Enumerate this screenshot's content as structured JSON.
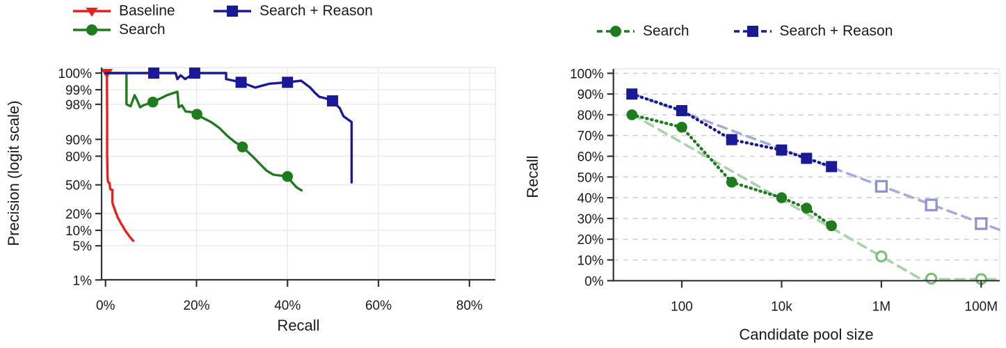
{
  "page": {
    "background": "#ffffff",
    "text_color": "#1a1a1a"
  },
  "colors": {
    "baseline_red": "#e8211d",
    "search_green": "#1e7b1e",
    "reason_navy": "#1a1a96",
    "search_fit_light_green": "#a8d2a8",
    "reason_fit_lavender": "#a7abdc",
    "search_open_marker": "#7bbd7b",
    "reason_open_marker": "#8b90d0",
    "grid_left": "#e9e9e9",
    "grid_right": "#cfcfcf",
    "spine": "#333333"
  },
  "chart_data": [
    {
      "id": "pr-curve",
      "type": "line",
      "title": "",
      "xlabel": "Recall",
      "ylabel": "Precision (logit scale)",
      "x_scale": "linear",
      "y_scale": "logit",
      "grid": true,
      "xlim": [
        0,
        86
      ],
      "x_ticks": {
        "values": [
          0,
          20,
          40,
          60,
          80
        ],
        "labels": [
          "0%",
          "20%",
          "40%",
          "60%",
          "80%"
        ]
      },
      "y_ticks": {
        "values": [
          100,
          99,
          98,
          90,
          80,
          50,
          20,
          10,
          5,
          1
        ],
        "labels": [
          "100%",
          "99%",
          "98%",
          "90%",
          "80%",
          "50%",
          "20%",
          "10%",
          "5%",
          "1%"
        ]
      },
      "legend": [
        {
          "label": "Baseline",
          "color": "#e8211d",
          "marker": "triangle-down",
          "line": "solid"
        },
        {
          "label": "Search",
          "color": "#1e7b1e",
          "marker": "circle",
          "line": "solid"
        },
        {
          "label": "Search + Reason",
          "color": "#1a1a96",
          "marker": "square",
          "line": "solid"
        }
      ],
      "series": [
        {
          "name": "Baseline",
          "color": "#e8211d",
          "marker": "triangle-down",
          "style": "solid",
          "points": [
            [
              0.3,
              100
            ],
            [
              0.35,
              97
            ],
            [
              0.35,
              81
            ],
            [
              0.4,
              70
            ],
            [
              0.45,
              60
            ],
            [
              0.5,
              55
            ],
            [
              0.6,
              53
            ],
            [
              0.9,
              52
            ],
            [
              0.95,
              49
            ],
            [
              1.0,
              46
            ],
            [
              1.1,
              44.5
            ],
            [
              1.5,
              44
            ],
            [
              1.5,
              30
            ],
            [
              1.7,
              27
            ],
            [
              1.9,
              25
            ],
            [
              2.1,
              22.5
            ],
            [
              2.3,
              20.5
            ],
            [
              2.5,
              19
            ],
            [
              2.7,
              17
            ],
            [
              3.0,
              15.5
            ],
            [
              3.2,
              14.5
            ],
            [
              3.5,
              13
            ],
            [
              3.8,
              12
            ],
            [
              4.0,
              11
            ],
            [
              4.3,
              10
            ],
            [
              4.6,
              9.2
            ],
            [
              4.9,
              8.5
            ],
            [
              5.2,
              7.8
            ],
            [
              5.5,
              7.2
            ],
            [
              5.8,
              6.7
            ],
            [
              6.1,
              6.3
            ]
          ],
          "marker_points": [
            [
              0.3,
              100
            ]
          ]
        },
        {
          "name": "Search",
          "color": "#1e7b1e",
          "marker": "circle",
          "style": "solid",
          "points": [
            [
              0,
              100
            ],
            [
              4.6,
              100
            ],
            [
              4.6,
              98.0
            ],
            [
              5.5,
              97.8
            ],
            [
              6.4,
              98.7
            ],
            [
              7.0,
              98.3
            ],
            [
              7.6,
              97.7
            ],
            [
              8.3,
              97.9
            ],
            [
              10.4,
              98.2
            ],
            [
              13.5,
              98.7
            ],
            [
              15.8,
              98.9
            ],
            [
              16.1,
              97.7
            ],
            [
              16.8,
              97.9
            ],
            [
              17.6,
              97.2
            ],
            [
              19.0,
              97.1
            ],
            [
              20.1,
              96.8
            ],
            [
              21.2,
              96.3
            ],
            [
              23.2,
              95.4
            ],
            [
              25.0,
              94.0
            ],
            [
              26.8,
              91.4
            ],
            [
              28.3,
              89.0
            ],
            [
              30.1,
              86.2
            ],
            [
              32.4,
              79.6
            ],
            [
              33.9,
              73.5
            ],
            [
              35.4,
              66.5
            ],
            [
              36.9,
              62.0
            ],
            [
              38.5,
              61.0
            ],
            [
              40.0,
              60.0
            ],
            [
              41.0,
              53.0
            ],
            [
              42.0,
              47.0
            ],
            [
              43.1,
              43.3
            ]
          ],
          "marker_points": [
            [
              10.4,
              98.2
            ],
            [
              20.1,
              96.8
            ],
            [
              30.1,
              86.2
            ],
            [
              40.0,
              60.0
            ]
          ]
        },
        {
          "name": "Search + Reason",
          "color": "#1a1a96",
          "marker": "square",
          "style": "solid",
          "points": [
            [
              0,
              100
            ],
            [
              15.4,
              100
            ],
            [
              15.8,
              99.4
            ],
            [
              16.5,
              99.5
            ],
            [
              17.5,
              99.4
            ],
            [
              19.6,
              100
            ],
            [
              26.5,
              100
            ],
            [
              26.5,
              99.4
            ],
            [
              29.8,
              99.3
            ],
            [
              32.9,
              99.1
            ],
            [
              36.0,
              99.25
            ],
            [
              40.0,
              99.3
            ],
            [
              43.0,
              99.35
            ],
            [
              45.0,
              99.1
            ],
            [
              46.0,
              98.85
            ],
            [
              47.0,
              98.6
            ],
            [
              48.3,
              98.5
            ],
            [
              49.9,
              98.3
            ],
            [
              50.8,
              97.9
            ],
            [
              51.5,
              97.6
            ],
            [
              52.3,
              96.5
            ],
            [
              53.5,
              95.8
            ],
            [
              54.1,
              95.4
            ],
            [
              54.1,
              53
            ]
          ],
          "marker_points": [
            [
              10.6,
              100
            ],
            [
              19.6,
              100
            ],
            [
              29.8,
              99.3
            ],
            [
              40.0,
              99.3
            ],
            [
              49.9,
              98.3
            ]
          ]
        }
      ]
    },
    {
      "id": "recall-vs-pool",
      "type": "line",
      "title": "",
      "xlabel": "Candidate pool size",
      "ylabel": "Recall",
      "x_scale": "log10",
      "y_scale": "linear",
      "grid": true,
      "ylim": [
        0,
        100
      ],
      "x_ticks": {
        "values": [
          2,
          4,
          6,
          8
        ],
        "labels": [
          "100",
          "10k",
          "1M",
          "100M"
        ]
      },
      "y_ticks": {
        "values": [
          0,
          10,
          20,
          30,
          40,
          50,
          60,
          70,
          80,
          90,
          100
        ],
        "labels": [
          "0%",
          "10%",
          "20%",
          "30%",
          "40%",
          "50%",
          "60%",
          "70%",
          "80%",
          "90%",
          "100%"
        ]
      },
      "legend": [
        {
          "label": "Search",
          "color": "#1e7b1e",
          "marker": "circle",
          "line": "dashed"
        },
        {
          "label": "Search + Reason",
          "color": "#1a1a96",
          "marker": "square",
          "line": "dashed"
        }
      ],
      "series": [
        {
          "name": "Search linear fit",
          "color": "#a8d2a8",
          "style": "dashed",
          "points": [
            [
              1,
              80.3
            ],
            [
              6,
              11.7
            ],
            [
              6.8,
              0.7
            ],
            [
              8.37,
              0.7
            ]
          ],
          "marker_points": []
        },
        {
          "name": "Search + Reason linear fit",
          "color": "#a7abdc",
          "style": "dashed",
          "points": [
            [
              1,
              90.3
            ],
            [
              8.37,
              24.5
            ]
          ],
          "marker_points": []
        },
        {
          "name": "Search",
          "color": "#1e7b1e",
          "marker": "circle",
          "style": "dotted",
          "points": [
            [
              1,
              80
            ],
            [
              2,
              74
            ],
            [
              3,
              47.5
            ],
            [
              4,
              40
            ],
            [
              4.5,
              35
            ],
            [
              5,
              26.5
            ]
          ],
          "marker_points": [
            [
              1,
              80
            ],
            [
              2,
              74
            ],
            [
              3,
              47.5
            ],
            [
              4,
              40
            ],
            [
              4.5,
              35
            ],
            [
              5,
              26.5
            ]
          ]
        },
        {
          "name": "Search + Reason",
          "color": "#1a1a96",
          "marker": "square",
          "style": "dotted",
          "points": [
            [
              1,
              90
            ],
            [
              2,
              82
            ],
            [
              3,
              68
            ],
            [
              4,
              63
            ],
            [
              4.5,
              59
            ],
            [
              5,
              55
            ]
          ],
          "marker_points": [
            [
              1,
              90
            ],
            [
              2,
              82
            ],
            [
              3,
              68
            ],
            [
              4,
              63
            ],
            [
              4.5,
              59
            ],
            [
              5,
              55
            ]
          ]
        },
        {
          "name": "Search extrapolated",
          "color": "#7bbd7b",
          "marker": "circle-open",
          "style": "none",
          "points": [],
          "marker_points": [
            [
              6,
              11.7
            ],
            [
              7,
              1.0
            ],
            [
              8,
              0.8
            ]
          ]
        },
        {
          "name": "Search + Reason extrapolated",
          "color": "#8b90d0",
          "marker": "square-open",
          "style": "none",
          "points": [],
          "marker_points": [
            [
              6,
              45.5
            ],
            [
              7,
              36.5
            ],
            [
              8,
              27.5
            ]
          ]
        }
      ]
    }
  ]
}
